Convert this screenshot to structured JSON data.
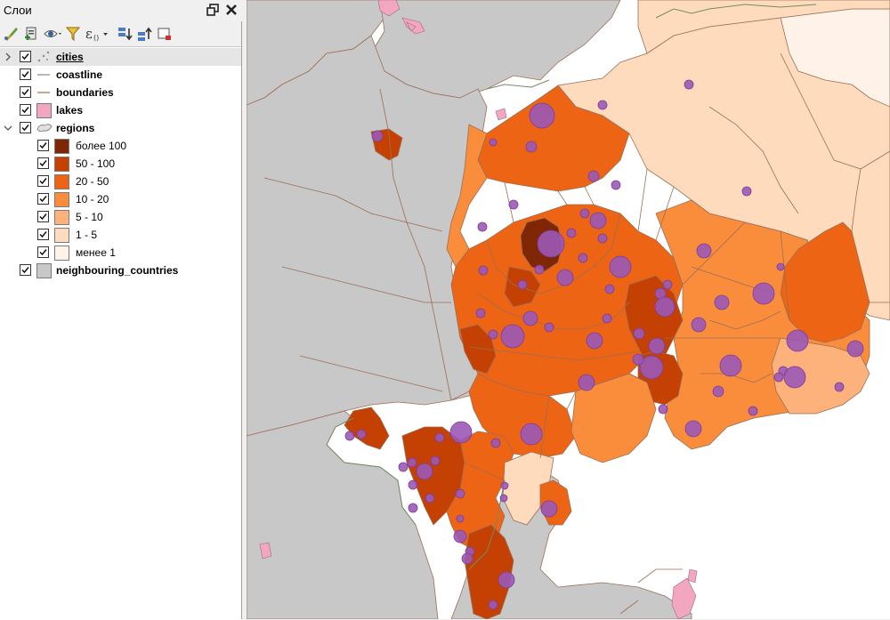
{
  "panel": {
    "title": "Слои",
    "float_icon": "dock-float-icon",
    "close_icon": "close-icon"
  },
  "toolbar": [
    {
      "name": "open-layer-styling-button",
      "icon": "paintbrush-icon"
    },
    {
      "name": "add-group-button",
      "icon": "add-group-icon"
    },
    {
      "name": "manage-visibility-button",
      "icon": "eye-icon"
    },
    {
      "name": "filter-legend-button",
      "icon": "funnel-icon"
    },
    {
      "name": "filter-by-expression-button",
      "icon": "epsilon-icon"
    },
    {
      "name": "expand-all-button",
      "icon": "expand-all-icon"
    },
    {
      "name": "collapse-all-button",
      "icon": "collapse-all-icon"
    },
    {
      "name": "remove-layer-button",
      "icon": "remove-layer-icon"
    }
  ],
  "layers": [
    {
      "name": "cities",
      "checked": true,
      "expander": "collapsed",
      "symbol": "point",
      "selected": true
    },
    {
      "name": "coastline",
      "checked": true,
      "symbol": "line",
      "color": "#9aa58c"
    },
    {
      "name": "boundaries",
      "checked": true,
      "symbol": "line",
      "color": "#a88c7a"
    },
    {
      "name": "lakes",
      "checked": true,
      "symbol": "fill",
      "color": "#f2a6c0"
    },
    {
      "name": "regions",
      "checked": true,
      "expander": "expanded",
      "symbol": "polygon"
    },
    {
      "name": "neighbouring_countries",
      "checked": true,
      "symbol": "fill",
      "color": "#c8c8c8"
    }
  ],
  "legend_classes": [
    {
      "label": "более 100",
      "color": "#7f2704",
      "checked": true
    },
    {
      "label": "50 - 100",
      "color": "#c44103",
      "checked": true
    },
    {
      "label": "20 - 50",
      "color": "#ec6414",
      "checked": true
    },
    {
      "label": "10 - 20",
      "color": "#f98d3c",
      "checked": true
    },
    {
      "label": "5 - 10",
      "color": "#fdb27b",
      "checked": true
    },
    {
      "label": "1 - 5",
      "color": "#fedbbd",
      "checked": true
    },
    {
      "label": "менее 1",
      "color": "#fff2e8",
      "checked": true
    }
  ],
  "map": {
    "background": "#ffffff",
    "neighbour_color": "#c8c8c8",
    "boundary_color": "#9c6e55",
    "coastline_color": "#738c64",
    "lake_color": "#f2a6c0",
    "city_color": "#9b59b6",
    "city_outline": "#7d3c98"
  }
}
